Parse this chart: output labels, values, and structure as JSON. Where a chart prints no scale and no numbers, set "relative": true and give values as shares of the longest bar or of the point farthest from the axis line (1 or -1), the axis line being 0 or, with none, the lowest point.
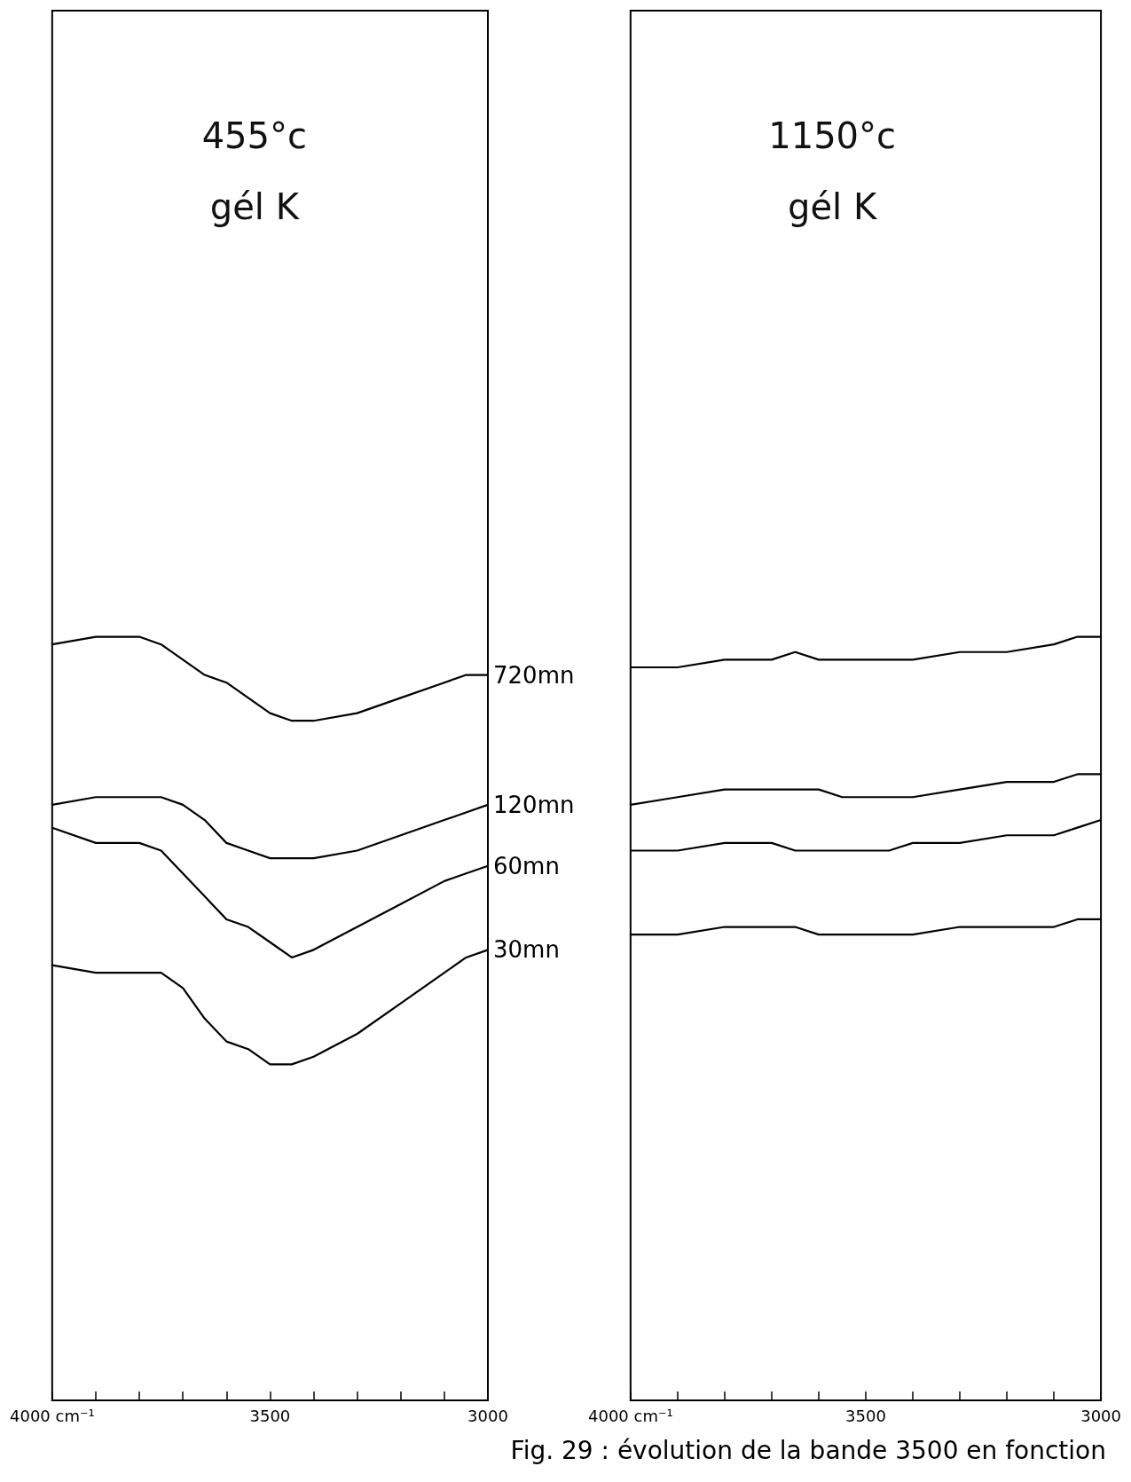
{
  "chart_data": [
    {
      "type": "line",
      "title": "455°c",
      "subtitle": "gél K",
      "relative": true,
      "grid": false,
      "legend": false,
      "marker": "none",
      "line_style": "solid",
      "x": [
        4000,
        3900,
        3800,
        3750,
        3700,
        3650,
        3600,
        3550,
        3500,
        3450,
        3400,
        3300,
        3200,
        3100,
        3050,
        3000
      ],
      "xlim": [
        4000,
        3000
      ],
      "xticks": [
        {
          "value": 4000,
          "label": "4000 cm⁻¹"
        },
        {
          "value": 3900,
          "label": null
        },
        {
          "value": 3800,
          "label": null
        },
        {
          "value": 3700,
          "label": null
        },
        {
          "value": 3600,
          "label": null
        },
        {
          "value": 3500,
          "label": "3500"
        },
        {
          "value": 3400,
          "label": null
        },
        {
          "value": 3300,
          "label": null
        },
        {
          "value": 3200,
          "label": null
        },
        {
          "value": 3100,
          "label": null
        },
        {
          "value": 3000,
          "label": "3000"
        }
      ],
      "series": [
        {
          "name": "720mn",
          "color": "#000000",
          "values": [
            0.99,
            1.0,
            1.0,
            0.99,
            0.97,
            0.95,
            0.94,
            0.92,
            0.9,
            0.89,
            0.89,
            0.9,
            0.92,
            0.94,
            0.95,
            0.95
          ]
        },
        {
          "name": "120mn",
          "color": "#000000",
          "values": [
            0.78,
            0.79,
            0.79,
            0.79,
            0.78,
            0.76,
            0.73,
            0.72,
            0.71,
            0.71,
            0.71,
            0.72,
            0.74,
            0.76,
            0.77,
            0.78
          ]
        },
        {
          "name": "60mn",
          "color": "#000000",
          "values": [
            0.75,
            0.73,
            0.73,
            0.72,
            0.69,
            0.66,
            0.63,
            0.62,
            0.6,
            0.58,
            0.59,
            0.62,
            0.65,
            0.68,
            0.69,
            0.7
          ]
        },
        {
          "name": "30mn",
          "color": "#000000",
          "values": [
            0.57,
            0.56,
            0.56,
            0.56,
            0.54,
            0.5,
            0.47,
            0.46,
            0.44,
            0.44,
            0.45,
            0.48,
            0.52,
            0.56,
            0.58,
            0.59
          ]
        }
      ]
    },
    {
      "type": "line",
      "title": "1150°c",
      "subtitle": "gél K",
      "relative": true,
      "grid": false,
      "legend": false,
      "marker": "none",
      "line_style": "solid",
      "x": [
        4000,
        3900,
        3800,
        3750,
        3700,
        3650,
        3600,
        3550,
        3500,
        3450,
        3400,
        3300,
        3200,
        3100,
        3050,
        3000
      ],
      "xlim": [
        4000,
        3000
      ],
      "xticks": [
        {
          "value": 4000,
          "label": "4000 cm⁻¹"
        },
        {
          "value": 3900,
          "label": null
        },
        {
          "value": 3800,
          "label": null
        },
        {
          "value": 3700,
          "label": null
        },
        {
          "value": 3600,
          "label": null
        },
        {
          "value": 3500,
          "label": "3500"
        },
        {
          "value": 3400,
          "label": null
        },
        {
          "value": 3300,
          "label": null
        },
        {
          "value": 3200,
          "label": null
        },
        {
          "value": 3100,
          "label": null
        },
        {
          "value": 3000,
          "label": "3000"
        }
      ],
      "annotations": [
        "Fig. 29 : évolution de la bande 3500 en fonction"
      ],
      "series": [
        {
          "color": "#000000",
          "values": [
            0.96,
            0.96,
            0.97,
            0.97,
            0.97,
            0.98,
            0.97,
            0.97,
            0.97,
            0.97,
            0.97,
            0.98,
            0.98,
            0.99,
            1.0,
            1.0
          ]
        },
        {
          "color": "#000000",
          "values": [
            0.78,
            0.79,
            0.8,
            0.8,
            0.8,
            0.8,
            0.8,
            0.79,
            0.79,
            0.79,
            0.79,
            0.8,
            0.81,
            0.81,
            0.82,
            0.82
          ]
        },
        {
          "color": "#000000",
          "values": [
            0.72,
            0.72,
            0.73,
            0.73,
            0.73,
            0.72,
            0.72,
            0.72,
            0.72,
            0.72,
            0.73,
            0.73,
            0.74,
            0.74,
            0.75,
            0.76
          ]
        },
        {
          "color": "#000000",
          "values": [
            0.61,
            0.61,
            0.62,
            0.62,
            0.62,
            0.62,
            0.61,
            0.61,
            0.61,
            0.61,
            0.61,
            0.62,
            0.62,
            0.62,
            0.63,
            0.63
          ]
        }
      ]
    }
  ]
}
